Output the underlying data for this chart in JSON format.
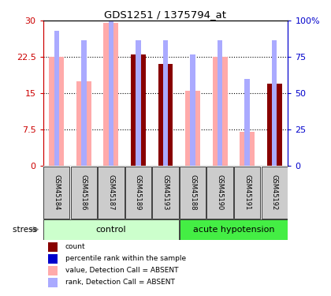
{
  "title": "GDS1251 / 1375794_at",
  "samples": [
    "GSM45184",
    "GSM45186",
    "GSM45187",
    "GSM45189",
    "GSM45193",
    "GSM45188",
    "GSM45190",
    "GSM45191",
    "GSM45192"
  ],
  "pink_values": [
    22.5,
    17.5,
    29.5,
    null,
    null,
    15.5,
    22.5,
    7.0,
    null
  ],
  "blue_rank_values": [
    28.0,
    26.0,
    33.0,
    26.0,
    26.0,
    23.0,
    26.0,
    18.0,
    26.0
  ],
  "dark_red_values": [
    null,
    null,
    null,
    23.0,
    21.0,
    null,
    null,
    null,
    17.0
  ],
  "ylim_left": [
    0,
    30
  ],
  "ylim_right": [
    0,
    100
  ],
  "yticks_left": [
    0,
    7.5,
    15,
    22.5,
    30
  ],
  "yticks_right": [
    0,
    25,
    50,
    75,
    100
  ],
  "ytick_labels_left": [
    "0",
    "7.5",
    "15",
    "22.5",
    "30"
  ],
  "ytick_labels_right": [
    "0",
    "25",
    "50",
    "75",
    "100%"
  ],
  "left_axis_color": "#cc0000",
  "right_axis_color": "#0000cc",
  "pink_color": "#ffaaaa",
  "blue_color": "#aaaaff",
  "dark_red_color": "#880000",
  "group_control_color": "#ccffcc",
  "group_hypo_color": "#44ee44",
  "sample_bg_color": "#cccccc",
  "legend_items": [
    {
      "color": "#880000",
      "label": "count"
    },
    {
      "color": "#0000cc",
      "label": "percentile rank within the sample"
    },
    {
      "color": "#ffaaaa",
      "label": "value, Detection Call = ABSENT"
    },
    {
      "color": "#aaaaff",
      "label": "rank, Detection Call = ABSENT"
    }
  ],
  "n_control": 5,
  "n_samples": 9
}
